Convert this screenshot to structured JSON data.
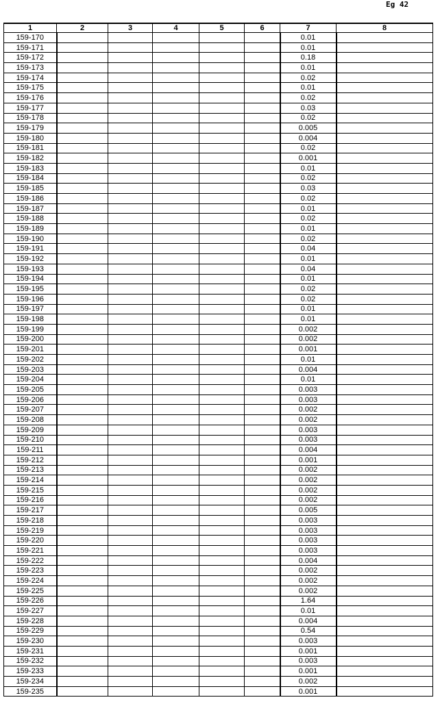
{
  "page_mark": "Eg 42",
  "table": {
    "headers": [
      "1",
      "2",
      "3",
      "4",
      "5",
      "6",
      "7",
      "8"
    ],
    "rows": [
      [
        "159-170",
        "0.01"
      ],
      [
        "159-171",
        "0.01"
      ],
      [
        "159-172",
        "0.18"
      ],
      [
        "159-173",
        "0.01"
      ],
      [
        "159-174",
        "0.02"
      ],
      [
        "159-175",
        "0.01"
      ],
      [
        "159-176",
        "0.02"
      ],
      [
        "159-177",
        "0.03"
      ],
      [
        "159-178",
        "0.02"
      ],
      [
        "159-179",
        "0.005"
      ],
      [
        "159-180",
        "0.004"
      ],
      [
        "159-181",
        "0.02"
      ],
      [
        "159-182",
        "0.001"
      ],
      [
        "159-183",
        "0.01"
      ],
      [
        "159-184",
        "0.02"
      ],
      [
        "159-185",
        "0.03"
      ],
      [
        "159-186",
        "0.02"
      ],
      [
        "159-187",
        "0.01"
      ],
      [
        "159-188",
        "0.02"
      ],
      [
        "159-189",
        "0.01"
      ],
      [
        "159-190",
        "0.02"
      ],
      [
        "159-191",
        "0.04"
      ],
      [
        "159-192",
        "0.01"
      ],
      [
        "159-193",
        "0.04"
      ],
      [
        "159-194",
        "0.01"
      ],
      [
        "159-195",
        "0.02"
      ],
      [
        "159-196",
        "0.02"
      ],
      [
        "159-197",
        "0.01"
      ],
      [
        "159-198",
        "0.01"
      ],
      [
        "159-199",
        "0.002"
      ],
      [
        "159-200",
        "0.002"
      ],
      [
        "159-201",
        "0.001"
      ],
      [
        "159-202",
        "0.01"
      ],
      [
        "159-203",
        "0.004"
      ],
      [
        "159-204",
        "0.01"
      ],
      [
        "159-205",
        "0.003"
      ],
      [
        "159-206",
        "0.003"
      ],
      [
        "159-207",
        "0.002"
      ],
      [
        "159-208",
        "0.002"
      ],
      [
        "159-209",
        "0.003"
      ],
      [
        "159-210",
        "0.003"
      ],
      [
        "159-211",
        "0.004"
      ],
      [
        "159-212",
        "0.001"
      ],
      [
        "159-213",
        "0.002"
      ],
      [
        "159-214",
        "0.002"
      ],
      [
        "159-215",
        "0.002"
      ],
      [
        "159-216",
        "0.002"
      ],
      [
        "159-217",
        "0.005"
      ],
      [
        "159-218",
        "0.003"
      ],
      [
        "159-219",
        "0.003"
      ],
      [
        "159-220",
        "0.003"
      ],
      [
        "159-221",
        "0.003"
      ],
      [
        "159-222",
        "0.004"
      ],
      [
        "159-223",
        "0.002"
      ],
      [
        "159-224",
        "0.002"
      ],
      [
        "159-225",
        "0.002"
      ],
      [
        "159-226",
        "1.64"
      ],
      [
        "159-227",
        "0.01"
      ],
      [
        "159-228",
        "0.004"
      ],
      [
        "159-229",
        "0.54"
      ],
      [
        "159-230",
        "0.003"
      ],
      [
        "159-231",
        "0.001"
      ],
      [
        "159-232",
        "0.003"
      ],
      [
        "159-233",
        "0.001"
      ],
      [
        "159-234",
        "0.002"
      ],
      [
        "159-235",
        "0.001"
      ]
    ]
  }
}
